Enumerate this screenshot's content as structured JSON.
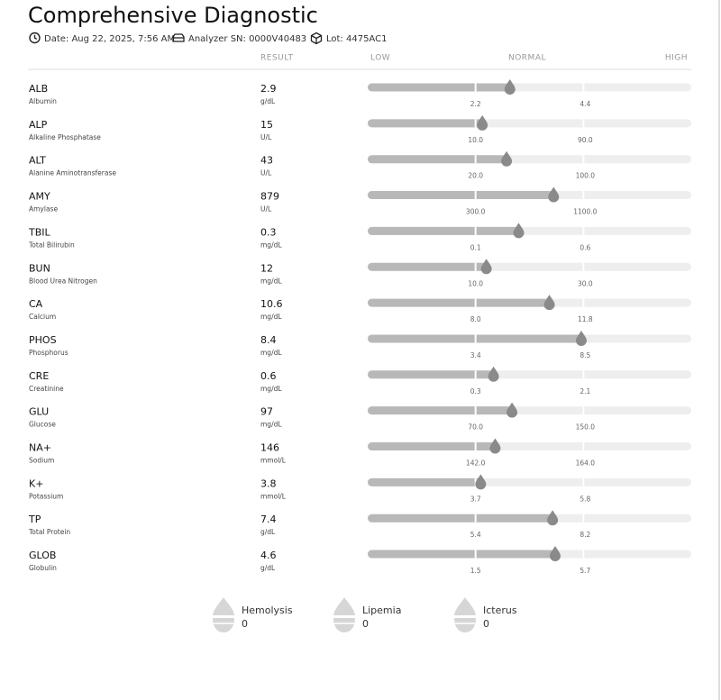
{
  "header": {
    "title": "Comprehensive Diagnostic",
    "date": "Date: Aug 22, 2025, 7:56 AM",
    "analyzer": "Analyzer SN: 0000V40483",
    "lot": "Lot: 4475AC1"
  },
  "columns": {
    "result": "RESULT",
    "low": "LOW",
    "normal": "NORMAL",
    "high": "HIGH"
  },
  "tests": [
    {
      "code": "ALB",
      "name": "Albumin",
      "value": "2.9",
      "unit": "g/dL",
      "low": "2.2",
      "high": "4.4"
    },
    {
      "code": "ALP",
      "name": "Alkaline Phosphatase",
      "value": "15",
      "unit": "U/L",
      "low": "10.0",
      "high": "90.0"
    },
    {
      "code": "ALT",
      "name": "Alanine Aminotransferase",
      "value": "43",
      "unit": "U/L",
      "low": "20.0",
      "high": "100.0"
    },
    {
      "code": "AMY",
      "name": "Amylase",
      "value": "879",
      "unit": "U/L",
      "low": "300.0",
      "high": "1100.0"
    },
    {
      "code": "TBIL",
      "name": "Total Bilirubin",
      "value": "0.3",
      "unit": "mg/dL",
      "low": "0.1",
      "high": "0.6"
    },
    {
      "code": "BUN",
      "name": "Blood Urea Nitrogen",
      "value": "12",
      "unit": "mg/dL",
      "low": "10.0",
      "high": "30.0"
    },
    {
      "code": "CA",
      "name": "Calcium",
      "value": "10.6",
      "unit": "mg/dL",
      "low": "8.0",
      "high": "11.8"
    },
    {
      "code": "PHOS",
      "name": "Phosphorus",
      "value": "8.4",
      "unit": "mg/dL",
      "low": "3.4",
      "high": "8.5"
    },
    {
      "code": "CRE",
      "name": "Creatinine",
      "value": "0.6",
      "unit": "mg/dL",
      "low": "0.3",
      "high": "2.1"
    },
    {
      "code": "GLU",
      "name": "Glucose",
      "value": "97",
      "unit": "mg/dL",
      "low": "70.0",
      "high": "150.0"
    },
    {
      "code": "NA+",
      "name": "Sodium",
      "value": "146",
      "unit": "mmol/L",
      "low": "142.0",
      "high": "164.0"
    },
    {
      "code": "K+",
      "name": "Potassium",
      "value": "3.8",
      "unit": "mmol/L",
      "low": "3.7",
      "high": "5.8"
    },
    {
      "code": "TP",
      "name": "Total Protein",
      "value": "7.4",
      "unit": "g/dL",
      "low": "5.4",
      "high": "8.2"
    },
    {
      "code": "GLOB",
      "name": "Globulin",
      "value": "4.6",
      "unit": "g/dL",
      "low": "1.5",
      "high": "5.7"
    }
  ],
  "interference": [
    {
      "name": "Hemolysis",
      "value": 0
    },
    {
      "name": "Lipemia",
      "value": 0
    },
    {
      "name": "Icterus",
      "value": 0
    }
  ]
}
